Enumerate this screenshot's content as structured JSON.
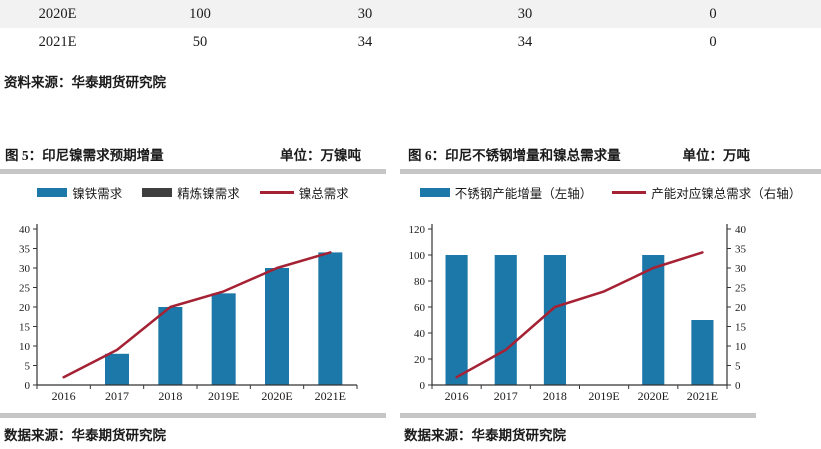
{
  "table": {
    "rows": [
      {
        "cells": [
          "2020E",
          "100",
          "30",
          "30",
          "0"
        ]
      },
      {
        "cells": [
          "2021E",
          "50",
          "34",
          "34",
          "0"
        ]
      }
    ],
    "source": "资料来源：华泰期货研究院"
  },
  "figures": [
    {
      "title": "图 5：印尼镍需求预期增量",
      "unit": "单位：万镍吨",
      "source": "数据来源：华泰期货研究院",
      "legend": [
        {
          "label": "镍铁需求",
          "type": "bar",
          "color": "#1b78a8"
        },
        {
          "label": "精炼镍需求",
          "type": "bar",
          "color": "#3f3f3f"
        },
        {
          "label": "镍总需求",
          "type": "line",
          "color": "#a52134"
        }
      ]
    },
    {
      "title": "图 6：印尼不锈钢增量和镍总需求量",
      "unit": "单位：万吨",
      "source": "数据来源：华泰期货研究院",
      "legend": [
        {
          "label": "不锈钢产能增量（左轴）",
          "type": "bar",
          "color": "#1b78a8"
        },
        {
          "label": "产能对应镍总需求（右轴）",
          "type": "line",
          "color": "#a52134"
        }
      ]
    }
  ],
  "colors": {
    "bar_blue": "#1b78a8",
    "bar_dark": "#3f3f3f",
    "line_red": "#a52134",
    "axis": "#333333",
    "divider_gray": "#c6c6c6",
    "row_shade": "#f2f2f2"
  },
  "chart_data": [
    {
      "type": "bar",
      "subtype": "bar+line combo",
      "title": "图 5：印尼镍需求预期增量",
      "unit": "万镍吨",
      "categories": [
        "2016",
        "2017",
        "2018",
        "2019E",
        "2020E",
        "2021E"
      ],
      "series": [
        {
          "name": "镍铁需求",
          "type": "bar",
          "axis": "left",
          "color": "#1b78a8",
          "values": [
            0,
            8,
            20,
            23.5,
            30,
            34
          ]
        },
        {
          "name": "精炼镍需求",
          "type": "bar",
          "axis": "left",
          "color": "#3f3f3f",
          "values": [
            0,
            0,
            0,
            0,
            0,
            0
          ]
        },
        {
          "name": "镍总需求",
          "type": "line",
          "axis": "left",
          "color": "#a52134",
          "values": [
            2,
            9,
            20,
            24,
            30,
            34
          ]
        }
      ],
      "left_axis": {
        "min": 0,
        "max": 40,
        "step": 5
      },
      "grid": false,
      "legend_position": "top"
    },
    {
      "type": "bar",
      "subtype": "bar+line combo, dual axis",
      "title": "图 6：印尼不锈钢增量和镍总需求量",
      "unit": "万吨",
      "categories": [
        "2016",
        "2017",
        "2018",
        "2019E",
        "2020E",
        "2021E"
      ],
      "series": [
        {
          "name": "不锈钢产能增量（左轴）",
          "type": "bar",
          "axis": "left",
          "color": "#1b78a8",
          "values": [
            100,
            100,
            100,
            0,
            100,
            50
          ]
        },
        {
          "name": "产能对应镍总需求（右轴）",
          "type": "line",
          "axis": "right",
          "color": "#a52134",
          "values": [
            2,
            9,
            20,
            24,
            30,
            34
          ]
        }
      ],
      "left_axis": {
        "min": 0,
        "max": 120,
        "step": 20
      },
      "right_axis": {
        "min": 0,
        "max": 40,
        "step": 5
      },
      "grid": false,
      "legend_position": "top"
    }
  ]
}
